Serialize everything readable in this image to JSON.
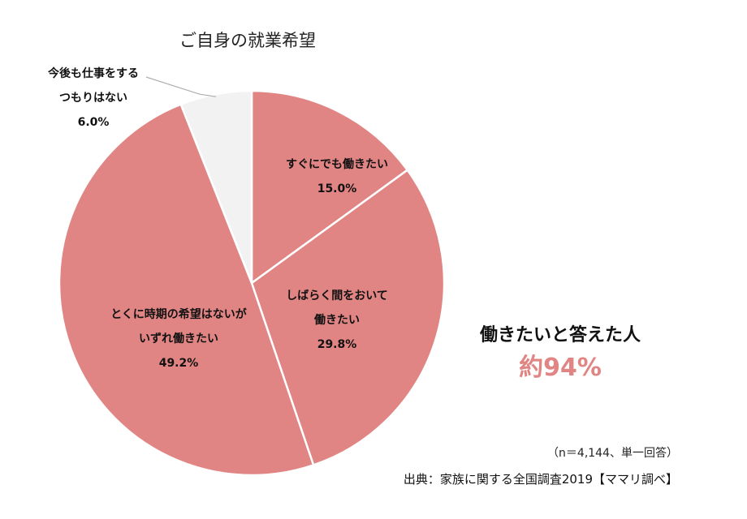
{
  "chart_data": {
    "type": "pie",
    "title": "ご自身の就業希望",
    "slices": [
      {
        "label_lines": [
          "すぐにでも働きたい"
        ],
        "value": 15.0,
        "value_label": "15.0%",
        "color": "#e08583"
      },
      {
        "label_lines": [
          "しばらく間をおいて",
          "働きたい"
        ],
        "value": 29.8,
        "value_label": "29.8%",
        "color": "#e08583"
      },
      {
        "label_lines": [
          "とくに時期の希望はないが",
          "いずれ働きたい"
        ],
        "value": 49.2,
        "value_label": "49.2%",
        "color": "#e08583"
      },
      {
        "label_lines": [
          "今後も仕事をする",
          "つもりはない"
        ],
        "value": 6.0,
        "value_label": "6.0%",
        "color": "#f2f2f2"
      }
    ],
    "start_direction": "top",
    "direction": "clockwise",
    "separator_color": "#ffffff",
    "leader_line_color": "#b0b0b0"
  },
  "summary": {
    "heading": "働きたいと答えた人",
    "value": "約94%",
    "value_color": "#e08583"
  },
  "notes": {
    "sample": "（n＝4,144、単一回答）",
    "source": "出典：家族に関する全国調査2019【ママリ調べ】"
  }
}
